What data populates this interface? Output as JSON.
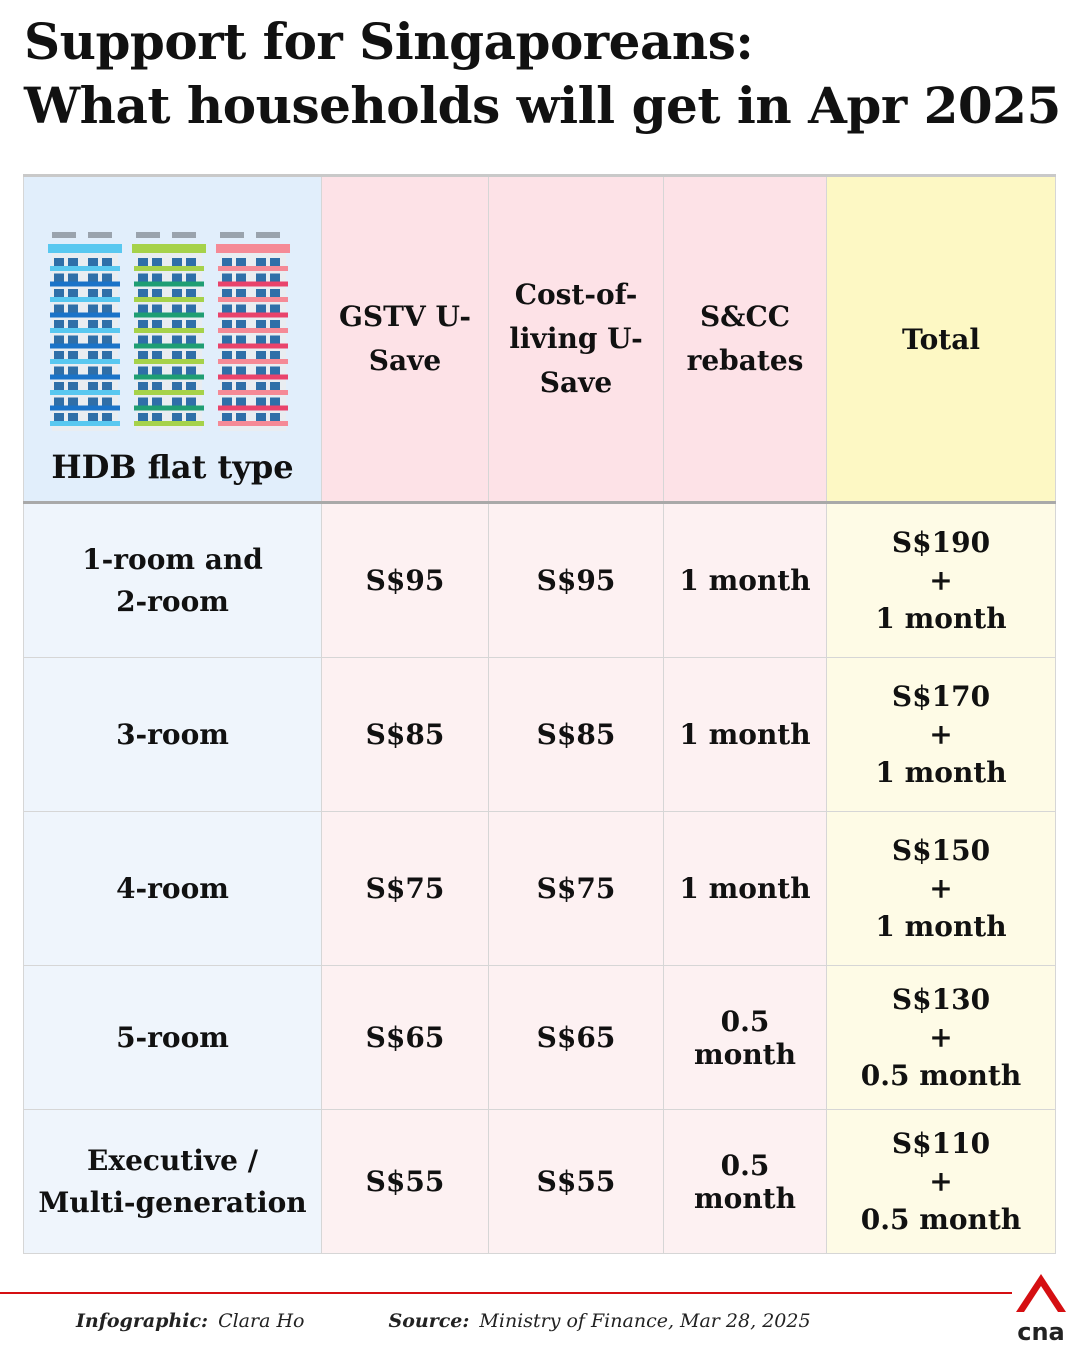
{
  "title": {
    "line1": "Support for Singaporeans:",
    "line2": "What households will get in Apr 2025"
  },
  "table": {
    "headers": {
      "flat_type": "HDB flat type",
      "gstv": [
        "GSTV",
        "U-Save"
      ],
      "col": [
        "Cost-of-",
        "living",
        "U-Save"
      ],
      "scc": [
        "S&CC",
        "rebates"
      ],
      "total": "Total"
    },
    "rows": [
      {
        "flat": [
          "1-room and",
          "2-room"
        ],
        "gstv": "S$95",
        "col": "S$95",
        "scc": [
          "1 month"
        ],
        "total": [
          "S$190",
          "+",
          "1 month"
        ]
      },
      {
        "flat": [
          "3-room"
        ],
        "gstv": "S$85",
        "col": "S$85",
        "scc": [
          "1 month"
        ],
        "total": [
          "S$170",
          "+",
          "1 month"
        ]
      },
      {
        "flat": [
          "4-room"
        ],
        "gstv": "S$75",
        "col": "S$75",
        "scc": [
          "1 month"
        ],
        "total": [
          "S$150",
          "+",
          "1 month"
        ]
      },
      {
        "flat": [
          "5-room"
        ],
        "gstv": "S$65",
        "col": "S$65",
        "scc": [
          "0.5",
          "month"
        ],
        "total": [
          "S$130",
          "+",
          "0.5 month"
        ]
      },
      {
        "flat": [
          "Executive /",
          "Multi-generation"
        ],
        "gstv": "S$55",
        "col": "S$55",
        "scc": [
          "0.5",
          "month"
        ],
        "total": [
          "S$110",
          "+",
          "0.5 month"
        ]
      }
    ]
  },
  "footer": {
    "infographic_label": "Infographic:",
    "infographic_by": "Clara Ho",
    "source_label": "Source:",
    "source": "Ministry of Finance, Mar 28, 2025"
  },
  "logo": {
    "text": "cna",
    "icon": "cna-logo-icon"
  },
  "colors": {
    "accent_red": "#d50f12",
    "flat_col_bg": "#eff5fc",
    "pink_bg": "#fde2e7",
    "total_bg": "#fdf8c4",
    "building_blue": "#1a73c8",
    "building_green": "#8fc33a",
    "building_pink": "#f27a8c"
  }
}
